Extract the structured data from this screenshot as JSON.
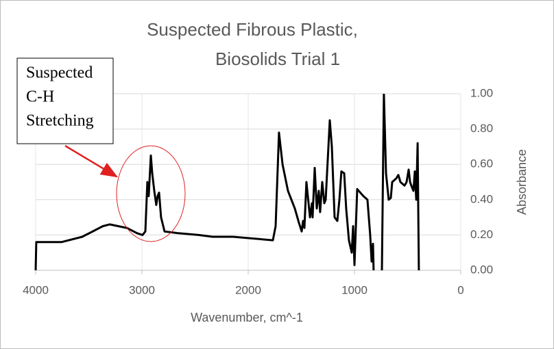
{
  "chart_data": {
    "type": "line",
    "title": [
      "Suspected Fibrous Plastic,",
      "Biosolids Trial 1"
    ],
    "annotation": [
      "Suspected",
      "C-H",
      "Stretching"
    ],
    "x_label": "Wavenumber, cm^-1",
    "y_label": "Absorbance",
    "x": [
      4000,
      3994,
      3755,
      3561,
      3368,
      3303,
      3142,
      3045,
      2994,
      2968,
      2949,
      2936,
      2916,
      2903,
      2884,
      2865,
      2852,
      2839,
      2820,
      2787,
      2658,
      2465,
      2335,
      2142,
      1948,
      1768,
      1742,
      1710,
      1677,
      1626,
      1561,
      1523,
      1497,
      1484,
      1471,
      1452,
      1419,
      1400,
      1394,
      1374,
      1355,
      1336,
      1323,
      1303,
      1284,
      1271,
      1232,
      1213,
      1187,
      1161,
      1142,
      1123,
      1097,
      1078,
      1052,
      1026,
      1013,
      1000,
      974,
      916,
      878,
      852,
      839,
      826,
      820,
      780,
      742,
      723,
      703,
      678,
      658,
      645,
      607,
      587,
      568,
      529,
      510,
      490,
      477,
      465,
      445,
      432,
      419,
      406,
      400,
      394
    ],
    "series": [
      {
        "name": "Absorbance",
        "color": "#000000",
        "values": [
          0,
          0.16,
          0.16,
          0.19,
          0.25,
          0.26,
          0.24,
          0.21,
          0.2,
          0.22,
          0.5,
          0.42,
          0.65,
          0.55,
          0.45,
          0.37,
          0.42,
          0.44,
          0.3,
          0.22,
          0.21,
          0.2,
          0.19,
          0.19,
          0.18,
          0.17,
          0.25,
          0.78,
          0.6,
          0.45,
          0.35,
          0.27,
          0.22,
          0.28,
          0.24,
          0.5,
          0.3,
          0.38,
          0.3,
          0.58,
          0.35,
          0.45,
          0.33,
          0.5,
          0.38,
          0.4,
          0.85,
          0.7,
          0.3,
          0.28,
          0.4,
          0.56,
          0.55,
          0.35,
          0.17,
          0.1,
          0.25,
          0.03,
          0.46,
          0.42,
          0.4,
          0.2,
          0.05,
          0.15,
          0,
          null,
          0,
          1.0,
          0.55,
          0.4,
          0.41,
          0.5,
          0.52,
          0.54,
          0.5,
          0.48,
          0.5,
          0.57,
          0.5,
          0.48,
          0.45,
          0.56,
          0.4,
          0.72,
          0.35,
          0
        ]
      }
    ],
    "xlim": [
      4000,
      0
    ],
    "xticks": [
      4000,
      3000,
      2000,
      1000,
      0
    ],
    "ylim": [
      0,
      1
    ],
    "yticks": [
      {
        "value": 0,
        "label": "0.00"
      },
      {
        "value": 0.2,
        "label": "0.20"
      },
      {
        "value": 0.4,
        "label": "0.40"
      },
      {
        "value": 0.6,
        "label": "0.60"
      },
      {
        "value": 0.8,
        "label": "0.80"
      },
      {
        "value": 1,
        "label": "1.00"
      }
    ],
    "grid": true
  }
}
